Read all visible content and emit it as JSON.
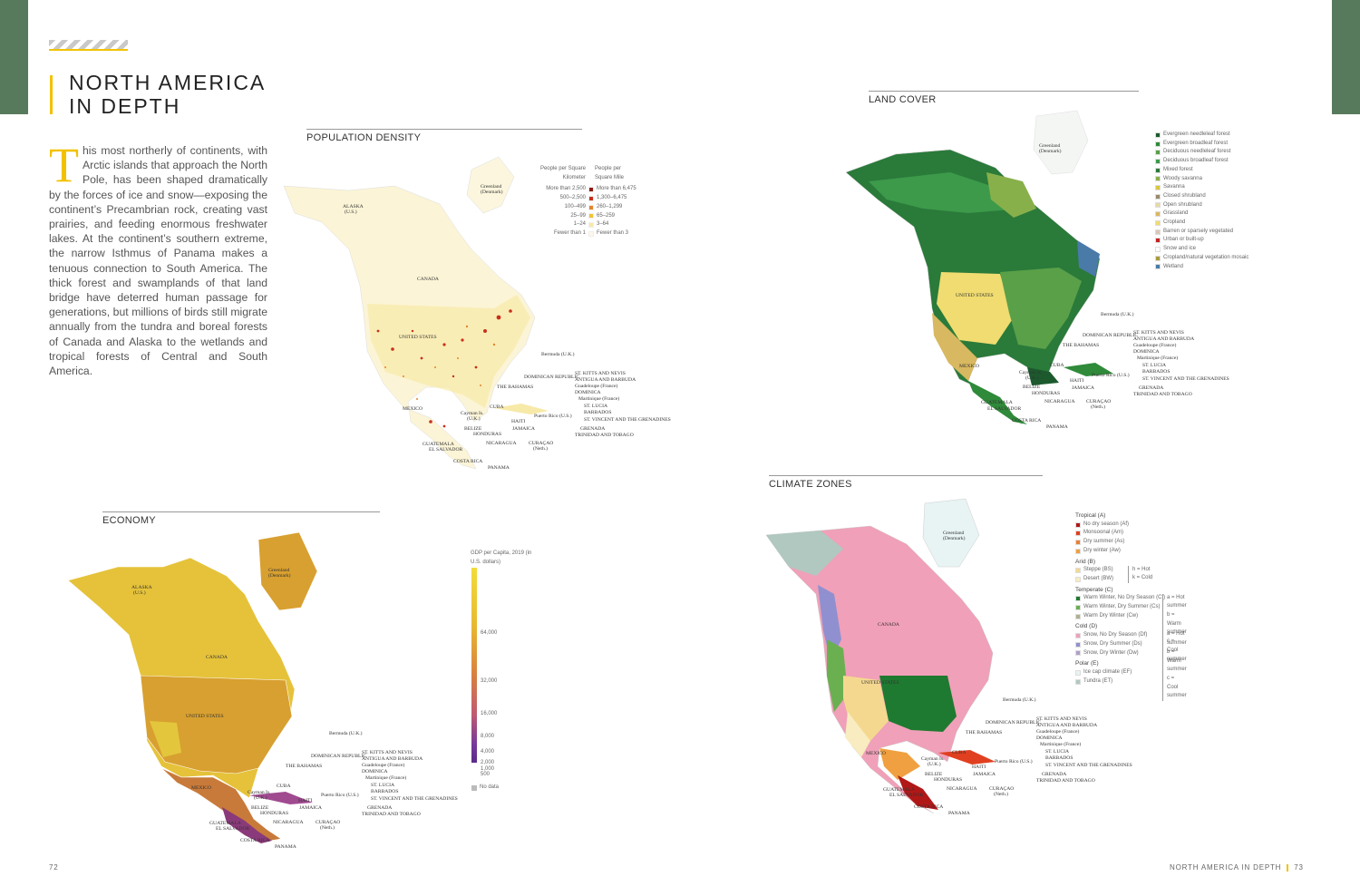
{
  "title_lines": [
    "NORTH AMERICA",
    "IN DEPTH"
  ],
  "intro": {
    "dropcap": "T",
    "text": "his most northerly of continents, with Arctic islands that approach the North Pole, has been shaped dramatically by the forces of ice and snow—exposing the continent’s Precambrian rock, creating vast prairies, and feeding enormous freshwater lakes. At the continent’s southern extreme, the narrow Isthmus of Panama makes a tenuous connection to South America. The thick forest and swamplands of that land bridge have deterred human passage for generations, but millions of birds still migrate annually from the tundra and boreal forests of Canada and Alaska to the wetlands and tropical forests of Central and South America."
  },
  "sections": {
    "population": "POPULATION DENSITY",
    "landcover": "LAND COVER",
    "economy": "ECONOMY",
    "climate": "CLIMATE ZONES"
  },
  "population_legend": {
    "head_left": "People per Square Kilometer",
    "head_right": "People per Square Mile",
    "rows": [
      {
        "l": "More than 2,500",
        "r": "More than 6,475",
        "c": "#8e1a12"
      },
      {
        "l": "500–2,500",
        "r": "1,300–6,475",
        "c": "#c8301c"
      },
      {
        "l": "100–499",
        "r": "260–1,299",
        "c": "#e5842a"
      },
      {
        "l": "25–99",
        "r": "65–259",
        "c": "#f2c230"
      },
      {
        "l": "1–24",
        "r": "3–64",
        "c": "#f7e9a8"
      },
      {
        "l": "Fewer than 1",
        "r": "Fewer than 3",
        "c": "#fdf8e6"
      }
    ]
  },
  "landcover_legend": [
    {
      "t": "Evergreen needleleaf forest",
      "c": "#1c5a2e"
    },
    {
      "t": "Evergreen broadleaf forest",
      "c": "#2f8a3a"
    },
    {
      "t": "Deciduous needleleaf forest",
      "c": "#5aa048"
    },
    {
      "t": "Deciduous broadleaf forest",
      "c": "#3c9a4a"
    },
    {
      "t": "Mixed forest",
      "c": "#2a7a3a"
    },
    {
      "t": "Woody savanna",
      "c": "#88b04a"
    },
    {
      "t": "Savanna",
      "c": "#d9c83a"
    },
    {
      "t": "Closed shrubland",
      "c": "#9a8a6a"
    },
    {
      "t": "Open shrubland",
      "c": "#e6d9a8"
    },
    {
      "t": "Grassland",
      "c": "#d8b860"
    },
    {
      "t": "Cropland",
      "c": "#f0dc70"
    },
    {
      "t": "Barren or sparsely vegetated",
      "c": "#d8c8b8"
    },
    {
      "t": "Urban or built-up",
      "c": "#c82020"
    },
    {
      "t": "Snow and ice",
      "c": "#ffffff"
    },
    {
      "t": "Cropland/natural vegetation mosaic",
      "c": "#a89a3a"
    },
    {
      "t": "Wetland",
      "c": "#4a7aa8"
    }
  ],
  "economy_legend": {
    "title": "GDP per Capita, 2019 (in U.S. dollars)",
    "ticks": [
      "64,000",
      "32,000",
      "16,000",
      "8,000",
      "4,000",
      "2,000",
      "1,000",
      "500"
    ],
    "nodata": "No data"
  },
  "climate_legend": {
    "groups": [
      {
        "h": "Tropical (A)",
        "items": [
          {
            "t": "No dry season (Af)",
            "c": "#b01818"
          },
          {
            "t": "Monsoonal (Am)",
            "c": "#e04020"
          },
          {
            "t": "Dry summer (As)",
            "c": "#e8803a"
          },
          {
            "t": "Dry winter (Aw)",
            "c": "#f0a040"
          }
        ]
      },
      {
        "h": "Arid (B)",
        "items": [
          {
            "t": "Steppe (BS)",
            "c": "#f5d890"
          },
          {
            "t": "Desert (BW)",
            "c": "#f8ecc0"
          }
        ],
        "note": [
          "h = Hot",
          "k = Cold"
        ]
      },
      {
        "h": "Temperate (C)",
        "items": [
          {
            "t": "Warm Winter, No Dry Season (Cf)",
            "c": "#1e7a30"
          },
          {
            "t": "Warm Winter, Dry Summer (Cs)",
            "c": "#6ab050"
          },
          {
            "t": "Warm Dry Winter (Cw)",
            "c": "#b0b090"
          }
        ],
        "note": [
          "a = Hot summer",
          "b = Warm summer",
          "c = Cool summer"
        ]
      },
      {
        "h": "Cold (D)",
        "items": [
          {
            "t": "Snow, No Dry Season (Df)",
            "c": "#f0a0b8"
          },
          {
            "t": "Snow, Dry Summer (Ds)",
            "c": "#9090d0"
          },
          {
            "t": "Snow, Dry Winter (Dw)",
            "c": "#b0a0c8"
          }
        ],
        "note": [
          "a = Hot summer",
          "b = Warm summer",
          "c = Cool summer"
        ]
      },
      {
        "h": "Polar (E)",
        "items": [
          {
            "t": "Ice cap climate (EF)",
            "c": "#e8f4f4"
          },
          {
            "t": "Tundra (ET)",
            "c": "#b0c8c0"
          }
        ]
      }
    ]
  },
  "labels": {
    "greenland": "Greenland",
    "denmark": "(Denmark)",
    "alaska": "ALASKA",
    "us": "(U.S.)",
    "canada": "CANADA",
    "united_states": "UNITED STATES",
    "mexico": "MEXICO",
    "bermuda": "Bermuda (U.K.)",
    "bahamas": "THE BAHAMAS",
    "cuba": "CUBA",
    "cayman": "Cayman Is.",
    "uk": "(U.K.)",
    "belize": "BELIZE",
    "honduras": "HONDURAS",
    "guatemala": "GUATEMALA",
    "elsalvador": "EL SALVADOR",
    "nicaragua": "NICARAGUA",
    "costarica": "COSTA RICA",
    "panama": "PANAMA",
    "haiti": "HAITI",
    "jamaica": "JAMAICA",
    "dominican": "DOMINICAN REPUBLIC",
    "puertorico": "Puerto Rico (U.S.)",
    "curacao": "CURAÇAO",
    "neth": "(Neth.)",
    "stkitts": "ST. KITTS AND NEVIS",
    "antigua": "ANTIGUA AND BARBUDA",
    "guadeloupe": "Guadeloupe (France)",
    "dominica": "DOMINICA",
    "martinique": "Martinique (France)",
    "stlucia": "ST. LUCIA",
    "barbados": "BARBADOS",
    "stvincent": "ST. VINCENT AND THE GRENADINES",
    "grenada": "GRENADA",
    "trinidad": "TRINIDAD AND TOBAGO"
  },
  "folio": {
    "left": "72",
    "right_label": "NORTH AMERICA IN DEPTH",
    "right": "73"
  }
}
